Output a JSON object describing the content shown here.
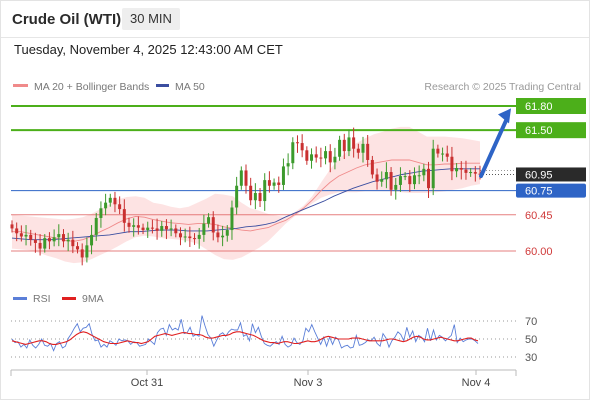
{
  "header": {
    "title": "Crude Oil (WTI)",
    "interval": "30 MIN",
    "datetime": "Tuesday, November 4, 2025 12:43:00 AM CET"
  },
  "legend": {
    "ma20": "MA 20 + Bollinger Bands",
    "ma50": "MA 50",
    "credit": "Research © 2025 Trading Central"
  },
  "rsi_legend": {
    "rsi": "RSI",
    "ma9": "9MA"
  },
  "colors": {
    "resistance": "#4caf1a",
    "pivot": "#2e64c6",
    "support": "#e06060",
    "current": "#2a2a2a",
    "bollinger_fill": "#fde2e2",
    "ma20": "#f08a8a",
    "ma50": "#3b4ea0",
    "candle_up": "#3c9a2c",
    "candle_down": "#c93030",
    "rsi": "#5b7fd8",
    "rsi_ma": "#e02020",
    "arrow": "#2e64c6"
  },
  "chart_data": [
    {
      "type": "candlestick",
      "name": "price",
      "x_ticks": [
        "Oct 31",
        "Nov 3",
        "Nov 4"
      ],
      "ylim": [
        59.45,
        62.05
      ],
      "current_price": 60.95,
      "levels": [
        {
          "label": "61.80",
          "value": 61.8,
          "kind": "resistance"
        },
        {
          "label": "61.50",
          "value": 61.5,
          "kind": "resistance"
        },
        {
          "label": "60.95",
          "value": 60.95,
          "kind": "current"
        },
        {
          "label": "60.75",
          "value": 60.75,
          "kind": "pivot"
        },
        {
          "label": "60.45",
          "value": 60.45,
          "kind": "support"
        },
        {
          "label": "60.00",
          "value": 60.0,
          "kind": "support"
        }
      ],
      "forecast_arrow": {
        "from": 60.93,
        "to": 61.77
      },
      "closes": [
        60.28,
        60.22,
        60.18,
        60.2,
        60.14,
        60.1,
        60.03,
        60.16,
        60.12,
        60.17,
        60.21,
        60.12,
        60.14,
        60.06,
        60.02,
        59.92,
        60.07,
        60.2,
        60.41,
        60.53,
        60.6,
        60.66,
        60.58,
        60.52,
        60.35,
        60.3,
        60.32,
        60.29,
        60.26,
        60.29,
        60.28,
        60.25,
        60.31,
        60.27,
        60.28,
        60.22,
        60.17,
        60.18,
        60.16,
        60.15,
        60.2,
        60.34,
        60.42,
        60.23,
        60.17,
        60.19,
        60.26,
        60.54,
        60.81,
        61.0,
        60.81,
        60.63,
        60.72,
        60.62,
        60.88,
        60.81,
        60.85,
        60.82,
        61.05,
        61.09,
        61.35,
        61.34,
        61.25,
        61.12,
        61.2,
        61.16,
        61.15,
        61.24,
        61.1,
        61.17,
        61.38,
        61.24,
        61.41,
        61.27,
        61.22,
        61.33,
        61.13,
        60.95,
        60.86,
        60.89,
        60.98,
        60.76,
        60.82,
        60.93,
        60.93,
        60.83,
        60.94,
        60.94,
        61.02,
        60.78,
        61.27,
        61.21,
        61.21,
        61.17,
        60.99,
        61.03,
        61.01,
        60.97,
        60.98,
        60.96,
        60.95
      ],
      "bollinger": {
        "upper": [
          60.45,
          60.44,
          60.43,
          60.42,
          60.41,
          60.4,
          60.39,
          60.4,
          60.42,
          60.46,
          60.52,
          60.58,
          60.64,
          60.67,
          60.68,
          60.66,
          60.6,
          60.58,
          60.55,
          60.53,
          60.55,
          60.6,
          60.65,
          60.71,
          60.7,
          60.68,
          60.6,
          60.53,
          60.5,
          60.46,
          60.44,
          60.42,
          60.48,
          60.56,
          60.68,
          60.85,
          61.01,
          61.14,
          61.24,
          61.34,
          61.4,
          61.45,
          61.48,
          61.52,
          61.54,
          61.54,
          61.48,
          61.42,
          61.42,
          61.42,
          61.41,
          61.4,
          61.38,
          61.36
        ],
        "lower": [
          60.03,
          60.02,
          60.01,
          59.98,
          59.94,
          59.91,
          59.87,
          59.85,
          59.86,
          59.9,
          59.95,
          60.0,
          60.06,
          60.12,
          60.17,
          60.19,
          60.18,
          60.16,
          60.15,
          60.14,
          60.12,
          60.09,
          60.02,
          59.95,
          59.9,
          59.89,
          59.92,
          59.98,
          60.04,
          60.12,
          60.23,
          60.34,
          60.43,
          60.51,
          60.59,
          60.66,
          60.7,
          60.73,
          60.73,
          60.73,
          60.74,
          60.74,
          60.74,
          60.74,
          60.73,
          60.72,
          60.72,
          60.72,
          60.73,
          60.74,
          60.76,
          60.78,
          60.81,
          60.83
        ]
      },
      "ma20": [
        60.24,
        60.24,
        60.22,
        60.2,
        60.18,
        60.16,
        60.13,
        60.12,
        60.14,
        60.18,
        60.24,
        60.29,
        60.35,
        60.4,
        60.43,
        60.42,
        60.39,
        60.37,
        60.35,
        60.34,
        60.33,
        60.34,
        60.34,
        60.33,
        60.3,
        60.28,
        60.26,
        60.25,
        60.27,
        60.29,
        60.34,
        60.38,
        60.45,
        60.53,
        60.63,
        60.75,
        60.85,
        60.93,
        60.98,
        61.03,
        61.07,
        61.09,
        61.11,
        61.13,
        61.13,
        61.13,
        61.1,
        61.07,
        61.07,
        61.08,
        61.08,
        61.09,
        61.09,
        61.09
      ],
      "ma50": [
        60.16,
        60.15,
        60.14,
        60.14,
        60.14,
        60.15,
        60.16,
        60.17,
        60.18,
        60.19,
        60.2,
        60.22,
        60.24,
        60.24,
        60.25,
        60.26,
        60.26,
        60.26,
        60.25,
        60.25,
        60.25,
        60.26,
        60.27,
        60.28,
        60.3,
        60.31,
        60.33,
        60.36,
        60.42,
        60.47,
        60.52,
        60.57,
        60.62,
        60.68,
        60.73,
        60.78,
        60.82,
        60.86,
        60.89,
        60.92,
        60.95,
        60.97,
        60.99,
        61.0,
        61.01,
        61.02,
        61.02,
        61.02,
        61.02
      ]
    },
    {
      "type": "line",
      "name": "RSI",
      "ylim": [
        25,
        80
      ],
      "y_ticks": [
        70,
        50,
        30
      ],
      "rsi": [
        50,
        46,
        47,
        41,
        44,
        40,
        49,
        43,
        40,
        44,
        50,
        43,
        42,
        45,
        37,
        45,
        47,
        40,
        42,
        51,
        56,
        62,
        67,
        58,
        62,
        63,
        67,
        55,
        48,
        49,
        41,
        44,
        41,
        48,
        46,
        43,
        50,
        48,
        49,
        48,
        44,
        47,
        46,
        42,
        43,
        44,
        50,
        47,
        44,
        57,
        61,
        62,
        54,
        66,
        60,
        62,
        60,
        72,
        56,
        57,
        63,
        53,
        55,
        53,
        76,
        65,
        55,
        51,
        42,
        49,
        55,
        57,
        53,
        58,
        61,
        60,
        60,
        68,
        53,
        55,
        48,
        67,
        57,
        63,
        53,
        45,
        43,
        42,
        45,
        47,
        44,
        53,
        44,
        41,
        43,
        51,
        46,
        44,
        48,
        62,
        58,
        66,
        58,
        51,
        44,
        52,
        42,
        52,
        44,
        52,
        49,
        40,
        42,
        43,
        40,
        41,
        54,
        43,
        44,
        46,
        49,
        48,
        52,
        45,
        42,
        56,
        51,
        41,
        48,
        52,
        58,
        55,
        48,
        63,
        52,
        59,
        47,
        54,
        52,
        47,
        62,
        48,
        60,
        49,
        54,
        52,
        48,
        51,
        54,
        66,
        46,
        51,
        47,
        49,
        50,
        50,
        48,
        45
      ],
      "rsi_ma": [
        48,
        47,
        46,
        45,
        44,
        45,
        46,
        47,
        48,
        48,
        47,
        45,
        44,
        44,
        45,
        46,
        47,
        49,
        52,
        55,
        57,
        58,
        57,
        55,
        53,
        51,
        49,
        47,
        46,
        45,
        45,
        45,
        46,
        47,
        48,
        47,
        46,
        46,
        45,
        46,
        47,
        50,
        53,
        54,
        55,
        56,
        55,
        54,
        55,
        56,
        57,
        57,
        56,
        56,
        55,
        55,
        54,
        52,
        51,
        51,
        52,
        53,
        54,
        54,
        55,
        57,
        58,
        58,
        57,
        56,
        55,
        54,
        52,
        50,
        48,
        47,
        46,
        46,
        45,
        46,
        47,
        47,
        46,
        45,
        45,
        46,
        47,
        48,
        47,
        47,
        48,
        50,
        52,
        53,
        52,
        51,
        50,
        50,
        50,
        50,
        51,
        51,
        51,
        50,
        49,
        48,
        48,
        48,
        48,
        48,
        49,
        50,
        50,
        49,
        48,
        47,
        48,
        50,
        52,
        53,
        52,
        50,
        49,
        49,
        50,
        51,
        52,
        51,
        50,
        49,
        48,
        48,
        49,
        50,
        51,
        51,
        49,
        48
      ]
    }
  ]
}
